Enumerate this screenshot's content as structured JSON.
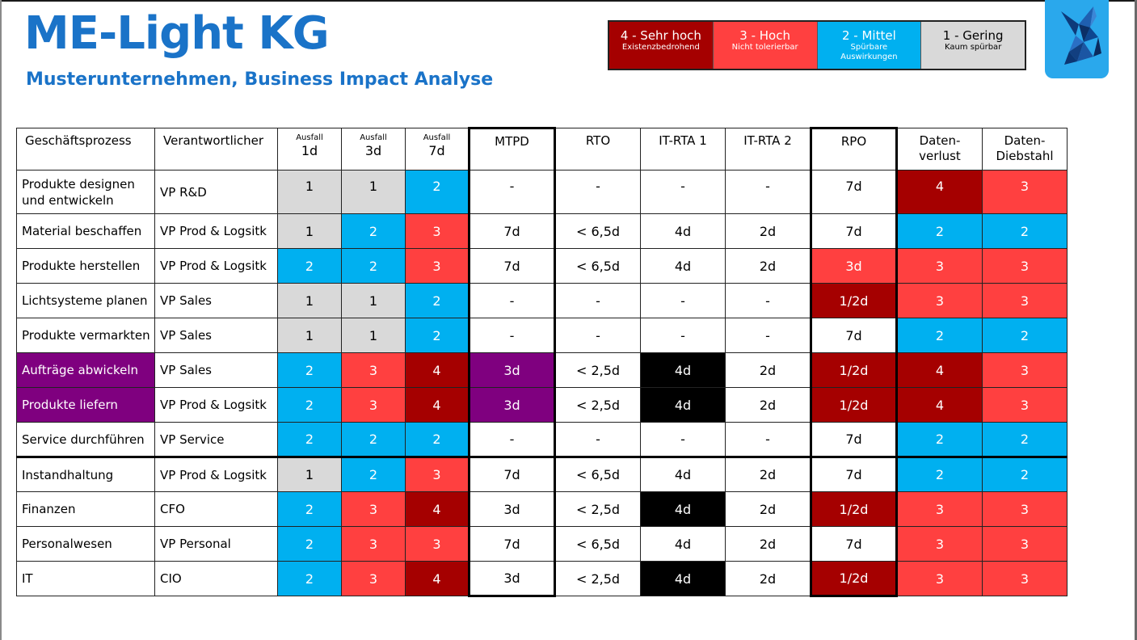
{
  "header": {
    "title": "ME-Light KG",
    "subtitle": "Musterunternehmen, Business Impact Analyse"
  },
  "colors": {
    "1": "#d9d9d9",
    "2": "#00b0f0",
    "3": "#ff4040",
    "4": "#a50000",
    "purple": "#7f007f",
    "black": "#000000",
    "white": "#ffffff",
    "title_blue": "#1a73c8"
  },
  "legend": [
    {
      "title": "4 - Sehr hoch",
      "sub": "Existenzbedrohend",
      "bg": "#a50000",
      "fg": "#ffffff"
    },
    {
      "title": "3 - Hoch",
      "sub": "Nicht tolerierbar",
      "bg": "#ff4040",
      "fg": "#ffffff"
    },
    {
      "title": "2 - Mittel",
      "sub": "Spürbare Auswirkungen",
      "bg": "#00b0f0",
      "fg": "#ffffff"
    },
    {
      "title": "1 - Gering",
      "sub": "Kaum spürbar",
      "bg": "#d9d9d9",
      "fg": "#000000"
    }
  ],
  "logo_icon": "bird-icon",
  "table": {
    "columns": [
      {
        "label": "Geschäftsprozess"
      },
      {
        "label": "Verantwortlicher"
      },
      {
        "small": "Ausfall",
        "big": "1d"
      },
      {
        "small": "Ausfall",
        "big": "3d"
      },
      {
        "small": "Ausfall",
        "big": "7d"
      },
      {
        "label": "MTPD"
      },
      {
        "label": "RTO"
      },
      {
        "label": "IT-RTA 1"
      },
      {
        "label": "IT-RTA 2"
      },
      {
        "label": "RPO"
      },
      {
        "label": "Daten-\nverlust"
      },
      {
        "label": "Daten-\nDiebstahl"
      }
    ],
    "rows": [
      {
        "process": "Produkte designen und entwickeln",
        "owner": "VP R&D",
        "a1": "1",
        "a3": "1",
        "a7": "2",
        "mtpd": "-",
        "rto": "-",
        "rta1": "-",
        "rta2": "-",
        "rpo": "7d",
        "verlust": "4",
        "diebstahl": "3",
        "rpo_level": "",
        "highlight": false,
        "rta1_black": false
      },
      {
        "process": "Material beschaffen",
        "owner": "VP Prod & Logsitk",
        "a1": "1",
        "a3": "2",
        "a7": "3",
        "mtpd": "7d",
        "rto": "< 6,5d",
        "rta1": "4d",
        "rta2": "2d",
        "rpo": "7d",
        "verlust": "2",
        "diebstahl": "2",
        "rpo_level": "",
        "highlight": false,
        "rta1_black": false
      },
      {
        "process": "Produkte herstellen",
        "owner": "VP Prod & Logsitk",
        "a1": "2",
        "a3": "2",
        "a7": "3",
        "mtpd": "7d",
        "rto": "< 6,5d",
        "rta1": "4d",
        "rta2": "2d",
        "rpo": "3d",
        "verlust": "3",
        "diebstahl": "3",
        "rpo_level": "3",
        "highlight": false,
        "rta1_black": false
      },
      {
        "process": "Lichtsysteme planen",
        "owner": "VP Sales",
        "a1": "1",
        "a3": "1",
        "a7": "2",
        "mtpd": "-",
        "rto": "-",
        "rta1": "-",
        "rta2": "-",
        "rpo": "1/2d",
        "verlust": "3",
        "diebstahl": "3",
        "rpo_level": "4",
        "highlight": false,
        "rta1_black": false
      },
      {
        "process": "Produkte vermarkten",
        "owner": "VP Sales",
        "a1": "1",
        "a3": "1",
        "a7": "2",
        "mtpd": "-",
        "rto": "-",
        "rta1": "-",
        "rta2": "-",
        "rpo": "7d",
        "verlust": "2",
        "diebstahl": "2",
        "rpo_level": "",
        "highlight": false,
        "rta1_black": false
      },
      {
        "process": "Aufträge abwickeln",
        "owner": "VP Sales",
        "a1": "2",
        "a3": "3",
        "a7": "4",
        "mtpd": "3d",
        "rto": "< 2,5d",
        "rta1": "4d",
        "rta2": "2d",
        "rpo": "1/2d",
        "verlust": "4",
        "diebstahl": "3",
        "rpo_level": "4",
        "highlight": true,
        "rta1_black": true
      },
      {
        "process": "Produkte liefern",
        "owner": "VP Prod & Logsitk",
        "a1": "2",
        "a3": "3",
        "a7": "4",
        "mtpd": "3d",
        "rto": "< 2,5d",
        "rta1": "4d",
        "rta2": "2d",
        "rpo": "1/2d",
        "verlust": "4",
        "diebstahl": "3",
        "rpo_level": "4",
        "highlight": true,
        "rta1_black": true
      },
      {
        "process": "Service durchführen",
        "owner": " VP Service",
        "a1": "2",
        "a3": "2",
        "a7": "2",
        "mtpd": "-",
        "rto": "-",
        "rta1": "-",
        "rta2": "-",
        "rpo": "7d",
        "verlust": "2",
        "diebstahl": "2",
        "rpo_level": "",
        "highlight": false,
        "rta1_black": false
      },
      {
        "process": "Instandhaltung",
        "owner": "VP Prod & Logsitk",
        "a1": "1",
        "a3": "2",
        "a7": "3",
        "mtpd": "7d",
        "rto": "< 6,5d",
        "rta1": "4d",
        "rta2": "2d",
        "rpo": "7d",
        "verlust": "2",
        "diebstahl": "2",
        "rpo_level": "",
        "highlight": false,
        "rta1_black": false
      },
      {
        "process": "Finanzen",
        "owner": "CFO",
        "a1": "2",
        "a3": "3",
        "a7": "4",
        "mtpd": "3d",
        "rto": "< 2,5d",
        "rta1": "4d",
        "rta2": "2d",
        "rpo": "1/2d",
        "verlust": "3",
        "diebstahl": "3",
        "rpo_level": "4",
        "highlight": false,
        "rta1_black": true
      },
      {
        "process": "Personalwesen",
        "owner": "VP Personal",
        "a1": "2",
        "a3": "3",
        "a7": "3",
        "mtpd": "7d",
        "rto": "< 6,5d",
        "rta1": "4d",
        "rta2": "2d",
        "rpo": "7d",
        "verlust": "3",
        "diebstahl": "3",
        "rpo_level": "",
        "highlight": false,
        "rta1_black": false
      },
      {
        "process": "IT",
        "owner": "CIO",
        "a1": "2",
        "a3": "3",
        "a7": "4",
        "mtpd": "3d",
        "rto": "< 2,5d",
        "rta1": "4d",
        "rta2": "2d",
        "rpo": "1/2d",
        "verlust": "3",
        "diebstahl": "3",
        "rpo_level": "4",
        "highlight": false,
        "rta1_black": true
      }
    ]
  }
}
